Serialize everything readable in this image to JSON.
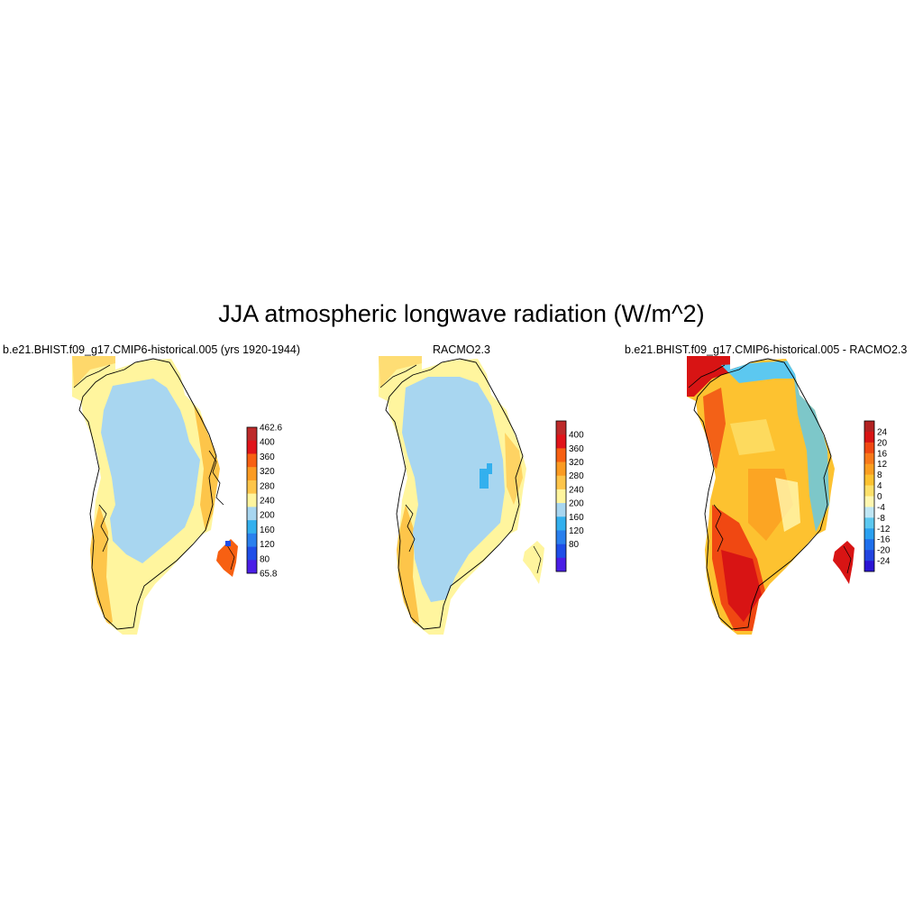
{
  "title": "JJA atmospheric longwave radiation (W/m^2)",
  "colors": {
    "abs_scale": [
      "#4a1ee6",
      "#1f4ee8",
      "#2a80ee",
      "#33b0ee",
      "#a8d6f0",
      "#fff59e",
      "#fdc54a",
      "#fb9b22",
      "#f76012",
      "#e0141a",
      "#bd2a2a"
    ],
    "diff_scale": [
      "#2a14d4",
      "#2244e0",
      "#1e6fec",
      "#2aa0f0",
      "#5cc8f0",
      "#bfe6f4",
      "#fff7b0",
      "#fde06a",
      "#fdc230",
      "#fb9e20",
      "#f8791a",
      "#f04812",
      "#d81414",
      "#b22222"
    ]
  },
  "panels": [
    {
      "title": "b.e21.BHIST.f09_g17.CMIP6-historical.005 (yrs 1920-1944)",
      "colorbar_labels": [
        "462.6",
        "400",
        "360",
        "320",
        "280",
        "240",
        "200",
        "160",
        "120",
        "80",
        "65.8"
      ]
    },
    {
      "title": "RACMO2.3",
      "colorbar_labels": [
        "400",
        "360",
        "320",
        "280",
        "240",
        "200",
        "160",
        "120",
        "80"
      ]
    },
    {
      "title": "b.e21.BHIST.f09_g17.CMIP6-historical.005 - RACMO2.3",
      "colorbar_labels": [
        "24",
        "20",
        "16",
        "12",
        "8",
        "4",
        "0",
        "-4",
        "-8",
        "-12",
        "-16",
        "-20",
        "-24"
      ]
    }
  ]
}
